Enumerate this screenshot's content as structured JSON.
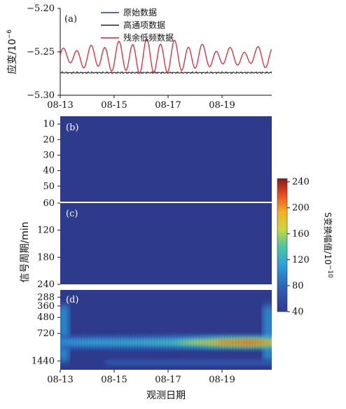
{
  "chart_data": [
    {
      "panel_label": "(a)",
      "type": "line",
      "ylabel": "应变/10",
      "ylabel_exp": "−6",
      "yticks": [
        "−5.20",
        "−5.25",
        "−5.30"
      ],
      "ylim": [
        -5.3,
        -5.2
      ],
      "xticks": [
        "08-13",
        "08-15",
        "08-17",
        "08-19"
      ],
      "x_range_days": [
        "08-13",
        "08-21"
      ],
      "legend_position": "top-center",
      "series": [
        {
          "name": "原始数据",
          "color": "#1f3f8a"
        },
        {
          "name": "高通项数据",
          "color": "#222222",
          "level": -5.274
        },
        {
          "name": "残余低频数据",
          "color": "#d6283a",
          "mean": -5.256,
          "amplitude_range": [
            0.008,
            0.02
          ],
          "period_hours": 12.4
        }
      ]
    },
    {
      "panel_label": "(b)",
      "type": "heatmap",
      "yticks": [
        "10",
        "20",
        "30",
        "40",
        "50"
      ],
      "ylim": [
        5,
        60
      ],
      "values_description": "uniform minimum",
      "level": 40
    },
    {
      "panel_label": "(c)",
      "type": "heatmap",
      "yticks": [
        "60",
        "120",
        "180",
        "240"
      ],
      "ylim": [
        60,
        240
      ],
      "level": 40
    },
    {
      "panel_label": "(d)",
      "type": "heatmap",
      "yticks": [
        "288",
        "360",
        "480",
        "720",
        "1440"
      ],
      "ylim": [
        240,
        1800
      ],
      "xticks": [
        "08-13",
        "08-15",
        "08-17",
        "08-19"
      ],
      "band_period_min": 900,
      "band_amplitude_by_day": [
        [
          0,
          110
        ],
        [
          1,
          120
        ],
        [
          2,
          125
        ],
        [
          3,
          130
        ],
        [
          4,
          140
        ],
        [
          5,
          175
        ],
        [
          6,
          215
        ],
        [
          7,
          225
        ],
        [
          8,
          200
        ]
      ]
    }
  ],
  "shared": {
    "ylabel": "信号周期/min",
    "xlabel": "观测日期"
  },
  "colorbar": {
    "label": "S变换幅值/10",
    "label_exp": "−10",
    "ticks": [
      "240",
      "200",
      "160",
      "120",
      "80",
      "40"
    ],
    "range": [
      40,
      245
    ]
  }
}
